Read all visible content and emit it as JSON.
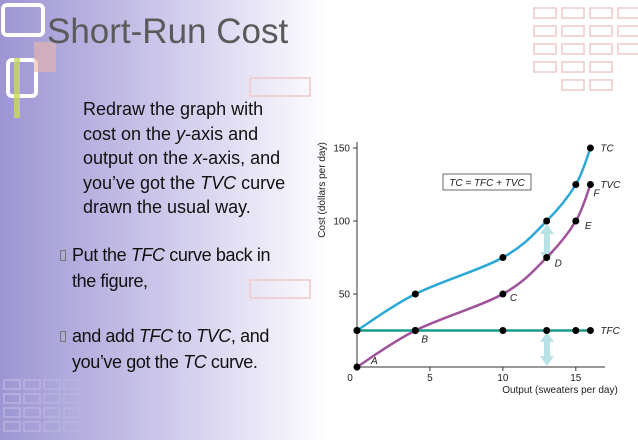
{
  "slide": {
    "title": "Short-Run Cost",
    "paragraph": [
      "Redraw the graph with cost on the ",
      "y",
      "-axis and output on the ",
      "x",
      "-axis, and you’ve got the ",
      "TVC",
      " curve drawn the usual way."
    ],
    "bullets": [
      [
        "Put the ",
        "TFC",
        " curve back in the figure,"
      ],
      [
        "and add ",
        "TFC",
        " to ",
        "TVC",
        ", and you’ve got the ",
        "TC",
        " curve."
      ]
    ]
  },
  "chart_data": {
    "type": "line",
    "y_label": "Cost (dollars per day)",
    "x_label": "Output (sweaters per day)",
    "annotation": "TC = TFC + TVC",
    "xlim": [
      0,
      17
    ],
    "ylim": [
      0,
      150
    ],
    "xticks": [
      0,
      5,
      10,
      15
    ],
    "yticks": [
      50,
      100,
      150
    ],
    "x": [
      0,
      4,
      10,
      13,
      15,
      16
    ],
    "series": [
      {
        "name": "TC",
        "color": "#2ba8d8",
        "values": [
          25,
          50,
          75,
          100,
          125,
          150
        ]
      },
      {
        "name": "TVC",
        "color": "#a0529a",
        "values": [
          0,
          25,
          50,
          75,
          100,
          125
        ],
        "point_labels": [
          "A",
          "B",
          "C",
          "D",
          "E",
          "F"
        ]
      },
      {
        "name": "TFC",
        "color": "#1a9a8a",
        "values": [
          25,
          25,
          25,
          25,
          25,
          25
        ]
      }
    ]
  }
}
